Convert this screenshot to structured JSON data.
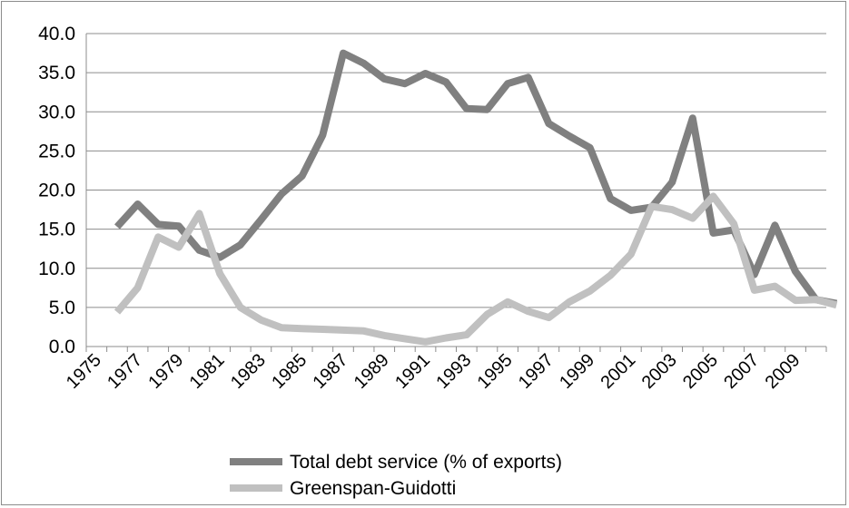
{
  "chart_data": {
    "type": "line",
    "title": "",
    "xlabel": "",
    "ylabel": "",
    "ylim": [
      0,
      40
    ],
    "y_ticks": [
      "0.0",
      "5.0",
      "10.0",
      "15.0",
      "20.0",
      "25.0",
      "30.0",
      "35.0",
      "40.0"
    ],
    "x_tick_labels": [
      "1975",
      "1977",
      "1979",
      "1981",
      "1983",
      "1985",
      "1987",
      "1989",
      "1991",
      "1993",
      "1995",
      "1997",
      "1999",
      "2001",
      "2003",
      "2005",
      "2007",
      "2009"
    ],
    "x": [
      1976,
      1977,
      1978,
      1979,
      1980,
      1981,
      1982,
      1983,
      1984,
      1985,
      1986,
      1987,
      1988,
      1989,
      1990,
      1991,
      1992,
      1993,
      1994,
      1995,
      1996,
      1997,
      1998,
      1999,
      2000,
      2001,
      2002,
      2003,
      2004,
      2005,
      2006,
      2007,
      2008,
      2009,
      2010,
      2011
    ],
    "grid": true,
    "legend_position": "bottom",
    "series": [
      {
        "name": "Total debt service (% of exports)",
        "color": "#808080",
        "values": [
          15.3,
          18.2,
          15.6,
          15.4,
          12.3,
          11.4,
          13.0,
          16.2,
          19.5,
          21.8,
          27.0,
          37.5,
          36.2,
          34.2,
          33.6,
          34.9,
          33.8,
          30.4,
          30.3,
          33.6,
          34.4,
          28.5,
          26.9,
          25.4,
          18.9,
          17.4,
          17.8,
          21.0,
          29.2,
          14.5,
          14.9,
          9.2,
          15.5,
          9.6,
          6.0,
          5.5
        ]
      },
      {
        "name": "Greenspan-Guidotti",
        "color": "#c0c0c0",
        "values": [
          4.4,
          7.5,
          14.0,
          12.7,
          17.0,
          9.3,
          5.0,
          3.4,
          2.4,
          2.3,
          2.2,
          2.1,
          2.0,
          1.4,
          1.0,
          0.6,
          1.1,
          1.5,
          4.1,
          5.7,
          4.5,
          3.7,
          5.7,
          7.1,
          9.1,
          11.8,
          17.9,
          17.5,
          16.4,
          19.2,
          15.7,
          7.2,
          7.7,
          5.9,
          6.0,
          5.3
        ]
      }
    ]
  }
}
